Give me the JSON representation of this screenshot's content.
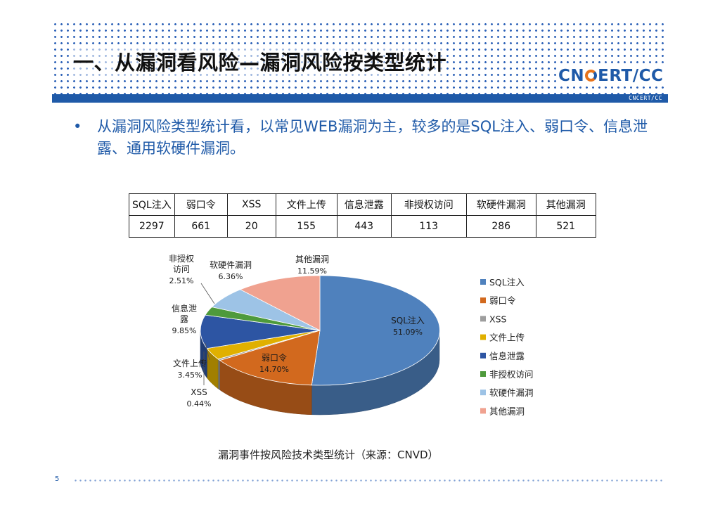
{
  "slide": {
    "title": "一、从漏洞看风险—漏洞风险按类型统计",
    "logo": "CN CERT/CC",
    "logo_sub": "CNCERT/CC",
    "bullet": "从漏洞风险类型统计看，以常见WEB漏洞为主，较多的是SQL注入、弱口令、信息泄露、通用软硬件漏洞。",
    "caption": "漏洞事件按风险技术类型统计（来源：CNVD）",
    "page_number": "5"
  },
  "table": {
    "headers": [
      "SQL注入",
      "弱口令",
      "XSS",
      "文件上传",
      "信息泄露",
      "非授权访问",
      "软硬件漏洞",
      "其他漏洞"
    ],
    "values": [
      "2297",
      "661",
      "20",
      "155",
      "443",
      "113",
      "286",
      "521"
    ]
  },
  "chart_data": {
    "type": "pie",
    "categories": [
      "SQL注入",
      "弱口令",
      "XSS",
      "文件上传",
      "信息泄露",
      "非授权访问",
      "软硬件漏洞",
      "其他漏洞"
    ],
    "values": [
      51.09,
      14.7,
      0.44,
      3.45,
      9.85,
      2.51,
      6.36,
      11.59
    ],
    "value_labels": [
      "51.09%",
      "14.70%",
      "0.44%",
      "3.45%",
      "9.85%",
      "2.51%",
      "6.36%",
      "11.59%"
    ],
    "slice_labels": [
      "SQL注入",
      "弱口令",
      "XSS",
      "文件上传",
      "信息泄",
      "非授权",
      "软硬件漏洞",
      "其他漏洞"
    ],
    "slice_labels_line2": [
      "",
      "",
      "",
      "",
      "露",
      "访问",
      "",
      ""
    ],
    "colors": [
      "#4f81bd",
      "#d2691e",
      "#9e9e9e",
      "#e0b000",
      "#2d55a3",
      "#4e9a3c",
      "#9dc3e6",
      "#f0a290"
    ],
    "legend_position": "right"
  }
}
